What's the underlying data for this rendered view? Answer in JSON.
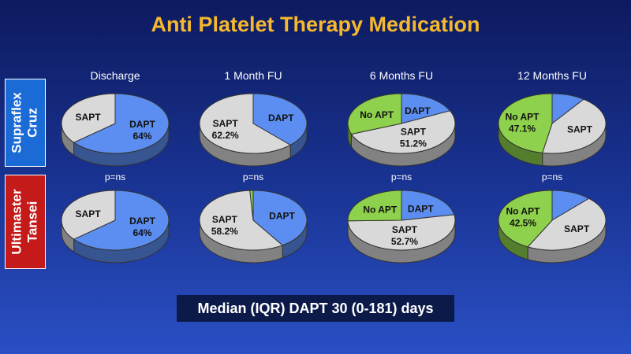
{
  "title": "Anti Platelet Therapy Medication",
  "footer": "Median (IQR) DAPT 30 (0-181) days",
  "colors": {
    "DAPT": "#5b8ef0",
    "SAPT": "#d9d9d9",
    "No APT": "#8ed14c",
    "title": "#f5b82e"
  },
  "chart_data": {
    "type": "pie",
    "title": "Anti Platelet Therapy Medication",
    "columns": [
      "Discharge",
      "1 Month FU",
      "6 Months FU",
      "12 Months FU"
    ],
    "rows": [
      {
        "label": "Supraflex\nCruz",
        "pies": [
          {
            "slices": [
              {
                "name": "DAPT",
                "value": 64,
                "label": "DAPT\n64%"
              },
              {
                "name": "SAPT",
                "value": 36,
                "label": "SAPT"
              }
            ]
          },
          {
            "slices": [
              {
                "name": "DAPT",
                "value": 37.8,
                "label": "DAPT"
              },
              {
                "name": "SAPT",
                "value": 62.2,
                "label": "SAPT\n62.2%"
              }
            ]
          },
          {
            "slices": [
              {
                "name": "DAPT",
                "value": 18,
                "label": "DAPT"
              },
              {
                "name": "SAPT",
                "value": 51.2,
                "label": "SAPT\n51.2%"
              },
              {
                "name": "No APT",
                "value": 30.8,
                "label": "No APT"
              }
            ]
          },
          {
            "slices": [
              {
                "name": "DAPT",
                "value": 10,
                "label": ""
              },
              {
                "name": "SAPT",
                "value": 42.9,
                "label": "SAPT"
              },
              {
                "name": "No APT",
                "value": 47.1,
                "label": "No APT\n47.1%"
              }
            ]
          }
        ]
      },
      {
        "label": "Ultimaster\nTansei",
        "pvalues": [
          "p=ns",
          "p=ns",
          "p=ns",
          "p=ns"
        ],
        "pies": [
          {
            "slices": [
              {
                "name": "DAPT",
                "value": 64,
                "label": "DAPT\n64%"
              },
              {
                "name": "SAPT",
                "value": 36,
                "label": "SAPT"
              }
            ]
          },
          {
            "slices": [
              {
                "name": "DAPT",
                "value": 40.8,
                "label": "DAPT"
              },
              {
                "name": "SAPT",
                "value": 58.2,
                "label": "SAPT\n58.2%"
              },
              {
                "name": "No APT",
                "value": 1,
                "label": ""
              }
            ]
          },
          {
            "slices": [
              {
                "name": "DAPT",
                "value": 22,
                "label": "DAPT"
              },
              {
                "name": "SAPT",
                "value": 52.7,
                "label": "SAPT\n52.7%"
              },
              {
                "name": "No APT",
                "value": 25.3,
                "label": "No APT"
              }
            ]
          },
          {
            "slices": [
              {
                "name": "DAPT",
                "value": 12,
                "label": ""
              },
              {
                "name": "SAPT",
                "value": 45.5,
                "label": "SAPT"
              },
              {
                "name": "No APT",
                "value": 42.5,
                "label": "No APT\n42.5%"
              }
            ]
          }
        ]
      }
    ]
  }
}
